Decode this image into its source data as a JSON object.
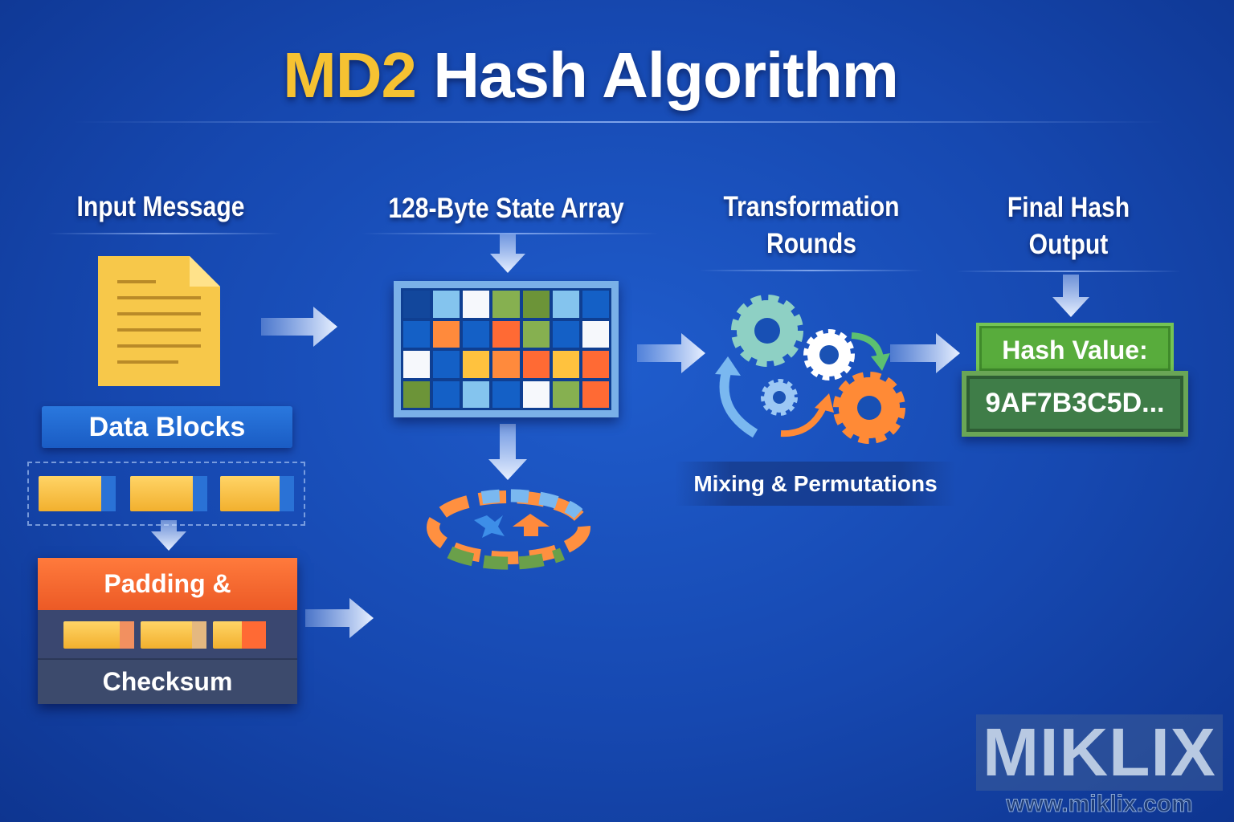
{
  "title": {
    "accent": "MD2",
    "rest": "Hash Algorithm"
  },
  "columns": {
    "input": "Input Message",
    "state": "128-Byte State Array",
    "rounds": [
      "Transformation",
      "Rounds"
    ],
    "output": [
      "Final Hash",
      "Output"
    ]
  },
  "input": {
    "data_blocks": "Data Blocks",
    "padding": "Padding & Checksum",
    "checksum": "Checksum"
  },
  "rounds": {
    "label": "Mixing & Permutations"
  },
  "output": {
    "hash_label": "Hash Value:",
    "hash_value": "9AF7B3C5D..."
  },
  "watermark": {
    "brand": "MIKLIX",
    "url": "www.miklix.com"
  },
  "colors": {
    "accent": "#f6c232",
    "D": "#12479c",
    "L": "#84c4ee",
    "W": "#f6f8fc",
    "G": "#86b050",
    "g": "#6c9438",
    "B": "#1460c6",
    "O": "#ff8a3c",
    "R": "#ff6a34",
    "Y": "#ffc23e"
  },
  "state_grid": [
    "DLWGgLB",
    "BOBRGBW",
    "WBYORYR",
    "gBLBWGR"
  ]
}
